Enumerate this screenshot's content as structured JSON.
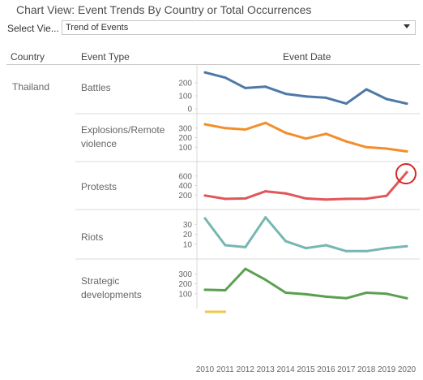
{
  "header": {
    "title": "Chart View: Event Trends By Country or Total Occurrences",
    "select_label": "Select Vie...",
    "select_value": "Trend of Events"
  },
  "columns": {
    "country": "Country",
    "event_type": "Event Type",
    "event_date": "Event Date"
  },
  "country": "Thailand",
  "colors": {
    "Battles": "#4e79a7",
    "Explosions/Remote violence": "#f28e2b",
    "Protests": "#e15759",
    "Riots": "#76b7b2",
    "Strategic developments": "#59a14f",
    "Violence against civilians": "#edc948",
    "highlight_circle": "#d62728"
  },
  "chart_data": {
    "type": "line",
    "x": [
      2010,
      2011,
      2012,
      2013,
      2014,
      2015,
      2016,
      2017,
      2018,
      2019,
      2020
    ],
    "x_tick_labels": [
      "2010",
      "2011",
      "2012",
      "2013",
      "2014",
      "2015",
      "2016",
      "2017",
      "2018",
      "2019",
      "2020"
    ],
    "panels": [
      {
        "event_type": "Battles",
        "label_lines": [
          "Battles"
        ],
        "ylim": [
          0,
          300
        ],
        "yticks": [
          0,
          100,
          200
        ],
        "values": [
          280,
          240,
          160,
          170,
          115,
          95,
          85,
          40,
          150,
          75,
          40
        ]
      },
      {
        "event_type": "Explosions/Remote violence",
        "label_lines": [
          "Explosions/Remote",
          "violence"
        ],
        "ylim": [
          0,
          400
        ],
        "yticks": [
          100,
          200,
          300
        ],
        "values": [
          340,
          300,
          285,
          355,
          250,
          190,
          240,
          160,
          100,
          85,
          55
        ]
      },
      {
        "event_type": "Protests",
        "label_lines": [
          "Protests"
        ],
        "ylim": [
          0,
          800
        ],
        "yticks": [
          200,
          400,
          600
        ],
        "values": [
          190,
          120,
          130,
          280,
          235,
          130,
          105,
          120,
          125,
          185,
          680
        ]
      },
      {
        "event_type": "Riots",
        "label_lines": [
          "Riots"
        ],
        "ylim": [
          0,
          40
        ],
        "yticks": [
          10,
          20,
          30
        ],
        "values": [
          36,
          9,
          7,
          37,
          13,
          6,
          9,
          3,
          3,
          6,
          8
        ]
      },
      {
        "event_type": "Strategic developments",
        "label_lines": [
          "Strategic",
          "developments"
        ],
        "ylim": [
          0,
          400
        ],
        "yticks": [
          100,
          200,
          300
        ],
        "values": [
          140,
          135,
          350,
          240,
          110,
          95,
          70,
          55,
          110,
          100,
          55
        ]
      }
    ],
    "highlight": {
      "event_type": "Protests",
      "year": 2020
    }
  }
}
